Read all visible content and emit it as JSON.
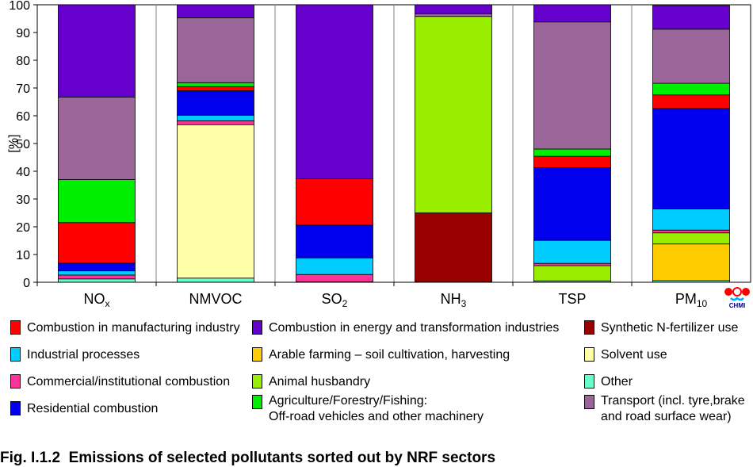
{
  "chart_data": {
    "type": "stacked-bar",
    "ylabel": "[%]",
    "ylim": [
      0,
      100
    ],
    "yticks": [
      0,
      10,
      20,
      30,
      40,
      50,
      60,
      70,
      80,
      90,
      100
    ],
    "grid": "vertical separators",
    "categories": [
      {
        "base": "NO",
        "sub": "x"
      },
      {
        "base": "NMVOC",
        "sub": ""
      },
      {
        "base": "SO",
        "sub": "2"
      },
      {
        "base": "NH",
        "sub": "3"
      },
      {
        "base": "TSP",
        "sub": ""
      },
      {
        "base": "PM",
        "sub": "10"
      }
    ],
    "series": [
      {
        "name": "Other",
        "color": "#66ffcc",
        "values": [
          1.2,
          1.5,
          0.2,
          0.2,
          0.5,
          0.6
        ]
      },
      {
        "name": "Arable farming – soil cultivation, harvesting",
        "color": "#ffcc00",
        "values": [
          0,
          0,
          0,
          0,
          0,
          13.2
        ]
      },
      {
        "name": "Synthetic N-fertilizer use",
        "color": "#990000",
        "values": [
          0,
          0,
          0,
          24.8,
          0,
          0
        ]
      },
      {
        "name": "Animal husbandry",
        "color": "#99ee00",
        "values": [
          0,
          0,
          0,
          70.8,
          5.5,
          4.0
        ]
      },
      {
        "name": "Solvent use",
        "color": "#ffffa8",
        "values": [
          0,
          55.3,
          0,
          0,
          0,
          0
        ]
      },
      {
        "name": "Commercial/institutional combustion",
        "color": "#ff3399",
        "values": [
          1.4,
          1.4,
          2.6,
          0,
          0.8,
          1.0
        ]
      },
      {
        "name": "Industrial processes",
        "color": "#00ccff",
        "values": [
          1.5,
          2.0,
          6.0,
          0,
          8.3,
          7.6
        ]
      },
      {
        "name": "Residential combustion",
        "color": "#0000ee",
        "values": [
          2.8,
          8.8,
          11.8,
          0,
          26.2,
          36.2
        ]
      },
      {
        "name": "Combustion in manufacturing industry",
        "color": "#ff0000",
        "values": [
          14.6,
          1.5,
          16.7,
          0,
          4.1,
          4.9
        ]
      },
      {
        "name": "Agriculture/Forestry/Fishing: Off-road vehicles and other machinery",
        "color": "#00ee00",
        "values": [
          15.5,
          1.4,
          0,
          0,
          2.6,
          4.2
        ]
      },
      {
        "name": "Transport (incl. tyre,brake and road surface wear)",
        "color": "#9a6699",
        "values": [
          29.7,
          23.4,
          0,
          1.0,
          45.8,
          19.5
        ]
      },
      {
        "name": "Combustion in energy and transformation industries",
        "color": "#6600cc",
        "values": [
          33.3,
          4.7,
          62.7,
          3.2,
          6.2,
          8.5
        ]
      }
    ]
  },
  "legend": [
    {
      "label": "Combustion in manufacturing industry",
      "color": "#ff0000"
    },
    {
      "label": "Combustion in energy and transformation industries",
      "color": "#6600cc"
    },
    {
      "label": "Synthetic N-fertilizer use",
      "color": "#990000"
    },
    {
      "label": "Industrial processes",
      "color": "#00ccff"
    },
    {
      "label": "Arable farming – soil cultivation, harvesting",
      "color": "#ffcc00"
    },
    {
      "label": "Solvent use",
      "color": "#ffffa8"
    },
    {
      "label": "Commercial/institutional combustion",
      "color": "#ff3399"
    },
    {
      "label": "Animal husbandry",
      "color": "#99ee00"
    },
    {
      "label": "Other",
      "color": "#66ffcc"
    },
    {
      "label": "Residential combustion",
      "color": "#0000ee"
    },
    {
      "label": "Agriculture/Forestry/Fishing:",
      "label2": "Off-road vehicles and other machinery",
      "color": "#00ee00"
    },
    {
      "label": "Transport (incl. tyre,brake",
      "label2": "and road surface wear)",
      "color": "#9a6699"
    }
  ],
  "caption": "Fig. I.1.2  Emissions of selected pollutants sorted out by NRF sectors",
  "logo": {
    "text": "CHMI",
    "icon": "chmi-logo-icon",
    "colors": [
      "#ff0000",
      "#00aaff"
    ]
  }
}
